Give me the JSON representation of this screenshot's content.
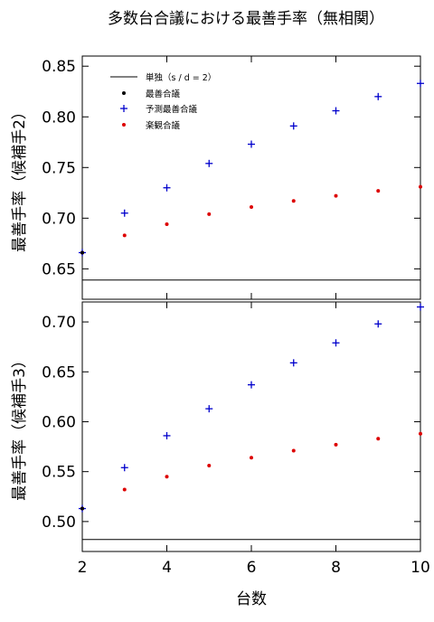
{
  "chart_data": [
    {
      "type": "scatter",
      "title": "多数台合議における最善手率（無相関）",
      "xlabel": "台数",
      "ylabel": "最善手率（候補手2）",
      "xlim": [
        2,
        10
      ],
      "ylim": [
        0.62,
        0.86
      ],
      "x_ticks": [
        2,
        4,
        6,
        8,
        10
      ],
      "x_tick_labels": [
        "2",
        "4",
        "6",
        "8",
        "10"
      ],
      "y_ticks": [
        0.65,
        0.7,
        0.75,
        0.8,
        0.85
      ],
      "y_tick_labels": [
        "0.65",
        "0.70",
        "0.75",
        "0.80",
        "0.85"
      ],
      "grid": false,
      "legend_position": "top-left",
      "baseline": {
        "name": "単独（s / d = 2）",
        "value": 0.639,
        "color": "#000000"
      },
      "series": [
        {
          "name": "最善合議",
          "marker": "dot",
          "color": "#000000",
          "x": [
            2
          ],
          "y": [
            0.666
          ]
        },
        {
          "name": "予測最善合議",
          "marker": "plus",
          "color": "#0000cc",
          "x": [
            2,
            3,
            4,
            5,
            6,
            7,
            8,
            9,
            10
          ],
          "y": [
            0.666,
            0.705,
            0.73,
            0.754,
            0.773,
            0.791,
            0.806,
            0.82,
            0.833
          ]
        },
        {
          "name": "楽観合議",
          "marker": "dot",
          "color": "#dd0000",
          "x": [
            2,
            3,
            4,
            5,
            6,
            7,
            8,
            9,
            10
          ],
          "y": [
            0.666,
            0.683,
            0.694,
            0.704,
            0.711,
            0.717,
            0.722,
            0.727,
            0.731
          ]
        }
      ]
    },
    {
      "type": "scatter",
      "xlabel": "台数",
      "ylabel": "最善手率（候補手3）",
      "xlim": [
        2,
        10
      ],
      "ylim": [
        0.47,
        0.72
      ],
      "x_ticks": [
        2,
        4,
        6,
        8,
        10
      ],
      "x_tick_labels": [
        "2",
        "4",
        "6",
        "8",
        "10"
      ],
      "y_ticks": [
        0.5,
        0.55,
        0.6,
        0.65,
        0.7
      ],
      "y_tick_labels": [
        "0.50",
        "0.55",
        "0.60",
        "0.65",
        "0.70"
      ],
      "grid": false,
      "baseline": {
        "value": 0.482,
        "color": "#000000"
      },
      "series": [
        {
          "name": "最善合議",
          "marker": "dot",
          "color": "#000000",
          "x": [
            2
          ],
          "y": [
            0.513
          ]
        },
        {
          "name": "予測最善合議",
          "marker": "plus",
          "color": "#0000cc",
          "x": [
            2,
            3,
            4,
            5,
            6,
            7,
            8,
            9,
            10
          ],
          "y": [
            0.513,
            0.554,
            0.586,
            0.613,
            0.637,
            0.659,
            0.679,
            0.698,
            0.715
          ]
        },
        {
          "name": "楽観合議",
          "marker": "dot",
          "color": "#dd0000",
          "x": [
            2,
            3,
            4,
            5,
            6,
            7,
            8,
            9,
            10
          ],
          "y": [
            0.513,
            0.532,
            0.545,
            0.556,
            0.564,
            0.571,
            0.577,
            0.583,
            0.588
          ]
        }
      ]
    }
  ]
}
